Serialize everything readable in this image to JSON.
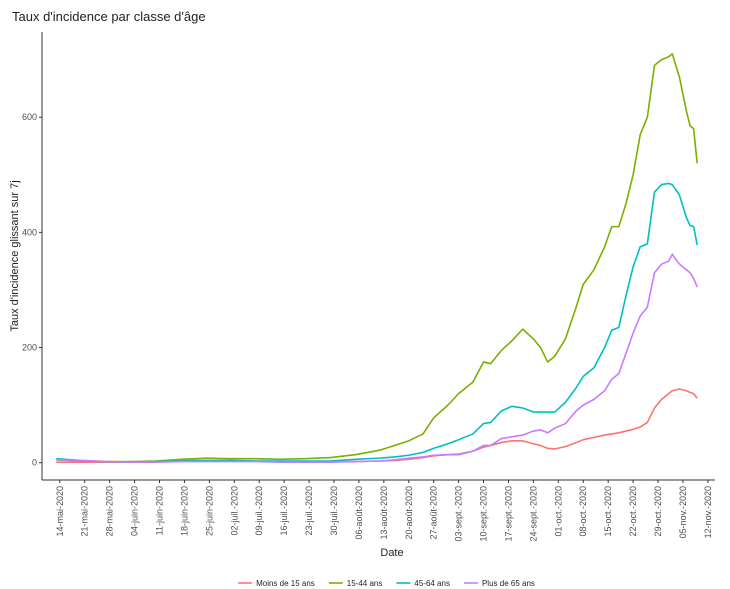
{
  "chart_data": {
    "type": "line",
    "title": "Taux d'incidence par classe d'âge",
    "x_label": "Date",
    "y_label": "Taux d'incidence glissant sur 7j",
    "x": [
      "2020-05-13",
      "2020-05-20",
      "2020-05-27",
      "2020-06-03",
      "2020-06-10",
      "2020-06-17",
      "2020-06-24",
      "2020-07-01",
      "2020-07-08",
      "2020-07-15",
      "2020-07-22",
      "2020-07-29",
      "2020-08-05",
      "2020-08-12",
      "2020-08-16",
      "2020-08-20",
      "2020-08-24",
      "2020-08-27",
      "2020-08-31",
      "2020-09-03",
      "2020-09-07",
      "2020-09-10",
      "2020-09-12",
      "2020-09-15",
      "2020-09-18",
      "2020-09-21",
      "2020-09-24",
      "2020-09-26",
      "2020-09-28",
      "2020-09-30",
      "2020-10-03",
      "2020-10-06",
      "2020-10-08",
      "2020-10-11",
      "2020-10-14",
      "2020-10-16",
      "2020-10-18",
      "2020-10-20",
      "2020-10-22",
      "2020-10-24",
      "2020-10-26",
      "2020-10-28",
      "2020-10-30",
      "2020-11-01",
      "2020-11-02",
      "2020-11-04",
      "2020-11-06",
      "2020-11-07",
      "2020-11-08",
      "2020-11-09"
    ],
    "series": [
      {
        "name": "Moins de 15 ans",
        "color": "#F8766D",
        "values": [
          1,
          1,
          1,
          1,
          2,
          4,
          4,
          3,
          3,
          2,
          2,
          2,
          2,
          3,
          4,
          6,
          9,
          12,
          14,
          15,
          20,
          27,
          30,
          35,
          38,
          38,
          33,
          30,
          25,
          24,
          28,
          35,
          40,
          44,
          48,
          50,
          52,
          55,
          58,
          62,
          70,
          95,
          110,
          120,
          125,
          128,
          125,
          122,
          120,
          112
        ]
      },
      {
        "name": "15-44 ans",
        "color": "#7CAE00",
        "values": [
          5,
          3,
          2,
          2,
          3,
          6,
          8,
          7,
          7,
          6,
          7,
          9,
          14,
          22,
          30,
          38,
          50,
          78,
          100,
          120,
          140,
          175,
          172,
          195,
          212,
          232,
          215,
          200,
          175,
          185,
          215,
          270,
          310,
          335,
          375,
          410,
          410,
          450,
          500,
          570,
          600,
          690,
          700,
          705,
          710,
          670,
          610,
          585,
          580,
          520
        ]
      },
      {
        "name": "45-64 ans",
        "color": "#00BFC4",
        "values": [
          7,
          4,
          2,
          1,
          2,
          3,
          4,
          4,
          3,
          3,
          3,
          3,
          6,
          8,
          10,
          13,
          18,
          25,
          33,
          40,
          50,
          68,
          70,
          90,
          98,
          95,
          88,
          88,
          88,
          88,
          105,
          130,
          150,
          165,
          200,
          230,
          235,
          290,
          340,
          375,
          380,
          470,
          483,
          485,
          483,
          465,
          425,
          412,
          410,
          378
        ]
      },
      {
        "name": "Plus de 65 ans",
        "color": "#C77CFF",
        "values": [
          5,
          4,
          2,
          1,
          1,
          2,
          2,
          2,
          2,
          1,
          1,
          1,
          2,
          3,
          5,
          8,
          10,
          13,
          14,
          14,
          20,
          30,
          30,
          42,
          45,
          48,
          55,
          57,
          52,
          60,
          68,
          90,
          100,
          110,
          125,
          145,
          155,
          190,
          225,
          255,
          270,
          330,
          345,
          350,
          362,
          345,
          335,
          330,
          320,
          305
        ]
      }
    ],
    "xlim": [
      "2020-05-09",
      "2020-11-14"
    ],
    "xticks": [
      {
        "value": "2020-05-14",
        "label": "14-mai-2020"
      },
      {
        "value": "2020-05-21",
        "label": "21-mai-2020"
      },
      {
        "value": "2020-05-28",
        "label": "28-mai-2020"
      },
      {
        "value": "2020-06-04",
        "label": "04-juin-2020"
      },
      {
        "value": "2020-06-11",
        "label": "11-juin-2020"
      },
      {
        "value": "2020-06-18",
        "label": "18-juin-2020"
      },
      {
        "value": "2020-06-25",
        "label": "25-juin-2020"
      },
      {
        "value": "2020-07-02",
        "label": "02-juil.-2020"
      },
      {
        "value": "2020-07-09",
        "label": "09-juil.-2020"
      },
      {
        "value": "2020-07-16",
        "label": "16-juil.-2020"
      },
      {
        "value": "2020-07-23",
        "label": "23-juil.-2020"
      },
      {
        "value": "2020-07-30",
        "label": "30-juil.-2020"
      },
      {
        "value": "2020-08-06",
        "label": "06-août-2020"
      },
      {
        "value": "2020-08-13",
        "label": "13-août-2020"
      },
      {
        "value": "2020-08-20",
        "label": "20-août-2020"
      },
      {
        "value": "2020-08-27",
        "label": "27-août-2020"
      },
      {
        "value": "2020-09-03",
        "label": "03-sept.-2020"
      },
      {
        "value": "2020-09-10",
        "label": "10-sept.-2020"
      },
      {
        "value": "2020-09-17",
        "label": "17-sept.-2020"
      },
      {
        "value": "2020-09-24",
        "label": "24-sept.-2020"
      },
      {
        "value": "2020-10-01",
        "label": "01-oct.-2020"
      },
      {
        "value": "2020-10-08",
        "label": "08-oct.-2020"
      },
      {
        "value": "2020-10-15",
        "label": "15-oct.-2020"
      },
      {
        "value": "2020-10-22",
        "label": "22-oct.-2020"
      },
      {
        "value": "2020-10-29",
        "label": "29-oct.-2020"
      },
      {
        "value": "2020-11-05",
        "label": "05-nov.-2020"
      },
      {
        "value": "2020-11-12",
        "label": "12-nov.-2020"
      }
    ],
    "ylim": [
      -30,
      748
    ],
    "yticks": [
      0,
      200,
      400,
      600
    ],
    "grid": false,
    "legend": "bottom"
  }
}
